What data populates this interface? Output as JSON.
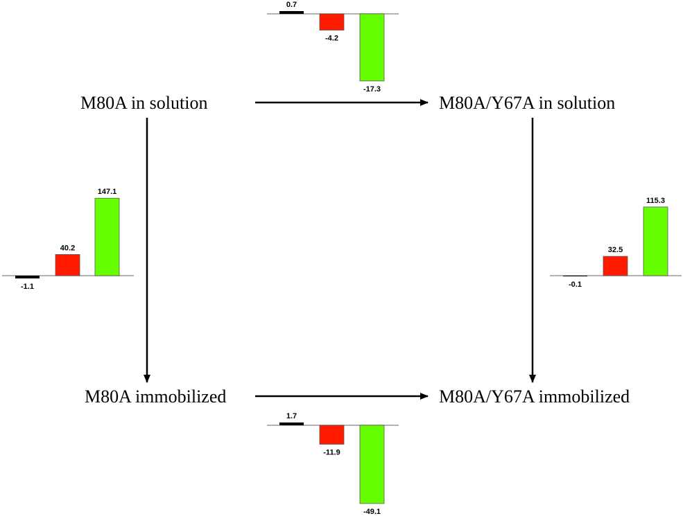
{
  "states": {
    "top_left": "M80A in solution",
    "top_right": "M80A/Y67A in solution",
    "bottom_left": "M80A immobilized",
    "bottom_right": "M80A/Y67A immobilized"
  },
  "colors": {
    "bar1": "#000000",
    "bar2": "#ff1a00",
    "bar3": "#66ff00",
    "baseline": "#999999"
  },
  "chart_data": [
    {
      "type": "bar",
      "position": "top",
      "values": [
        0.7,
        -4.2,
        -17.3
      ],
      "labels": [
        "0.7",
        "-4.2",
        "-17.3"
      ]
    },
    {
      "type": "bar",
      "position": "left",
      "values": [
        -1.1,
        40.2,
        147.1
      ],
      "labels": [
        "-1.1",
        "40.2",
        "147.1"
      ]
    },
    {
      "type": "bar",
      "position": "right",
      "values": [
        -0.1,
        32.5,
        115.3
      ],
      "labels": [
        "-0.1",
        "32.5",
        "115.3"
      ]
    },
    {
      "type": "bar",
      "position": "bottom",
      "values": [
        1.7,
        -11.9,
        -49.1
      ],
      "labels": [
        "1.7",
        "-11.9",
        "-49.1"
      ]
    }
  ]
}
